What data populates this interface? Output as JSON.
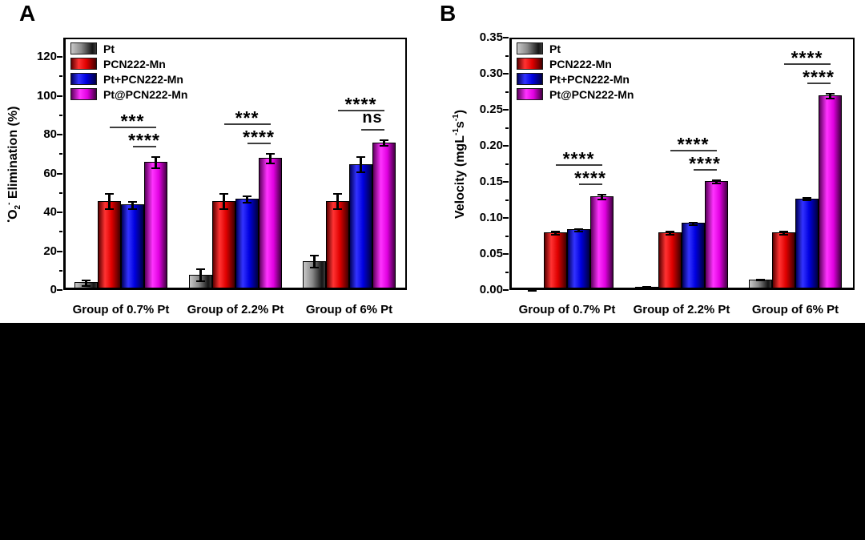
{
  "figure": {
    "background": "#ffffff",
    "bottom_bar_color": "#000000"
  },
  "chart_data": [
    {
      "type": "bar",
      "panel_label": "A",
      "title": "",
      "xlabel": "",
      "ylabel": "•O2⁻ Elimination (%)",
      "ylabel_parts": [
        {
          "text": "•",
          "script": "sup"
        },
        {
          "text": "O",
          "script": "normal"
        },
        {
          "text": "2",
          "script": "sub"
        },
        {
          "text": "-",
          "script": "sup"
        },
        {
          "text": " Elimination (%)",
          "script": "normal"
        }
      ],
      "ylim": [
        0,
        130
      ],
      "yticks": [
        0,
        20,
        40,
        60,
        80,
        100,
        120
      ],
      "ytick_labels": [
        "0",
        "20",
        "40",
        "60",
        "80",
        "100",
        "120"
      ],
      "grid": false,
      "legend_position": "top-left",
      "categories": [
        "Group of 0.7% Pt",
        "Group of 2.2% Pt",
        "Group of 6% Pt"
      ],
      "series": [
        {
          "name": "Pt",
          "values": [
            4,
            8,
            15
          ],
          "errors": [
            1.5,
            3,
            3
          ],
          "gradient": {
            "stops": [
              "#c8c8c8",
              "#8a8a8a",
              "#151515",
              "#3a3a3a"
            ],
            "positions": [
              0,
              40,
              85,
              100
            ]
          }
        },
        {
          "name": "PCN222-Mn",
          "values": [
            46,
            46,
            46
          ],
          "errors": [
            4,
            4,
            4
          ],
          "gradient": {
            "stops": [
              "#5c0000",
              "#ff3333",
              "#e00000",
              "#420000"
            ],
            "positions": [
              0,
              30,
              60,
              100
            ]
          }
        },
        {
          "name": "Pt+PCN222-Mn",
          "values": [
            44,
            47,
            65
          ],
          "errors": [
            2,
            1.5,
            4
          ],
          "gradient": {
            "stops": [
              "#00005c",
              "#3333ff",
              "#0000e0",
              "#000042"
            ],
            "positions": [
              0,
              30,
              60,
              100
            ]
          }
        },
        {
          "name": "Pt@PCN222-Mn",
          "values": [
            66,
            68,
            76
          ],
          "errors": [
            3,
            2.5,
            1.5
          ],
          "gradient": {
            "stops": [
              "#5c005c",
              "#ff33ff",
              "#e000e0",
              "#420042"
            ],
            "positions": [
              0,
              35,
              65,
              100
            ]
          }
        }
      ],
      "significance": [
        {
          "upper_label": "***",
          "lower_label": "****"
        },
        {
          "upper_label": "***",
          "lower_label": "****"
        },
        {
          "upper_label": "****",
          "lower_label": "ns"
        }
      ]
    },
    {
      "type": "bar",
      "panel_label": "B",
      "title": "",
      "xlabel": "",
      "ylabel": "Velocity (mgL⁻¹s⁻¹)",
      "ylabel_parts": [
        {
          "text": "Velocity (mgL",
          "script": "normal"
        },
        {
          "text": "-1",
          "script": "sup"
        },
        {
          "text": "s",
          "script": "normal"
        },
        {
          "text": "-1",
          "script": "sup"
        },
        {
          "text": ")",
          "script": "normal"
        }
      ],
      "ylim": [
        0,
        0.35
      ],
      "yticks": [
        0,
        0.05,
        0.1,
        0.15,
        0.2,
        0.25,
        0.3,
        0.35
      ],
      "ytick_labels": [
        "0.00",
        "0.05",
        "0.10",
        "0.15",
        "0.20",
        "0.25",
        "0.30",
        "0.35"
      ],
      "grid": false,
      "legend_position": "top-left",
      "categories": [
        "Group of 0.7% Pt",
        "Group of 2.2% Pt",
        "Group of 6% Pt"
      ],
      "series": [
        {
          "name": "Pt",
          "values": [
            0.001,
            0.005,
            0.015
          ],
          "errors": [
            0.001,
            0.001,
            0.001
          ],
          "gradient": {
            "stops": [
              "#c8c8c8",
              "#8a8a8a",
              "#151515",
              "#3a3a3a"
            ],
            "positions": [
              0,
              40,
              85,
              100
            ]
          }
        },
        {
          "name": "PCN222-Mn",
          "values": [
            0.08,
            0.08,
            0.08
          ],
          "errors": [
            0.002,
            0.002,
            0.002
          ],
          "gradient": {
            "stops": [
              "#5c0000",
              "#ff3333",
              "#e00000",
              "#420000"
            ],
            "positions": [
              0,
              30,
              60,
              100
            ]
          }
        },
        {
          "name": "Pt+PCN222-Mn",
          "values": [
            0.084,
            0.093,
            0.127
          ],
          "errors": [
            0.002,
            0.002,
            0.002
          ],
          "gradient": {
            "stops": [
              "#00005c",
              "#3333ff",
              "#0000e0",
              "#000042"
            ],
            "positions": [
              0,
              30,
              60,
              100
            ]
          }
        },
        {
          "name": "Pt@PCN222-Mn",
          "values": [
            0.13,
            0.151,
            0.27
          ],
          "errors": [
            0.003,
            0.002,
            0.003
          ],
          "gradient": {
            "stops": [
              "#5c005c",
              "#ff33ff",
              "#e000e0",
              "#420042"
            ],
            "positions": [
              0,
              35,
              65,
              100
            ]
          }
        }
      ],
      "significance": [
        {
          "upper_label": "****",
          "lower_label": "****"
        },
        {
          "upper_label": "****",
          "lower_label": "****"
        },
        {
          "upper_label": "****",
          "lower_label": "****"
        }
      ]
    }
  ]
}
